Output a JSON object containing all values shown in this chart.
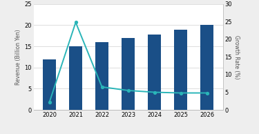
{
  "years": [
    2020,
    2021,
    2022,
    2023,
    2024,
    2025,
    2026
  ],
  "revenue": [
    12.0,
    15.0,
    16.0,
    17.0,
    17.8,
    18.9,
    20.0
  ],
  "growth_rate": [
    2.2,
    24.8,
    6.5,
    5.5,
    5.0,
    4.8,
    4.8
  ],
  "bar_color": "#1a4f87",
  "line_color": "#2ab5b8",
  "left_ylim": [
    0,
    25
  ],
  "left_yticks": [
    0,
    5,
    10,
    15,
    20,
    25
  ],
  "right_ylim": [
    0,
    30
  ],
  "right_yticks": [
    0.0,
    5.0,
    10.0,
    15.0,
    20.0,
    25.0,
    30.0
  ],
  "ylabel_left": "Revenue (Billion Yen)",
  "ylabel_right": "Growth Rate (%)",
  "background_color": "#eeeeee",
  "plot_bg_color": "#ffffff",
  "grid_color": "#dddddd"
}
